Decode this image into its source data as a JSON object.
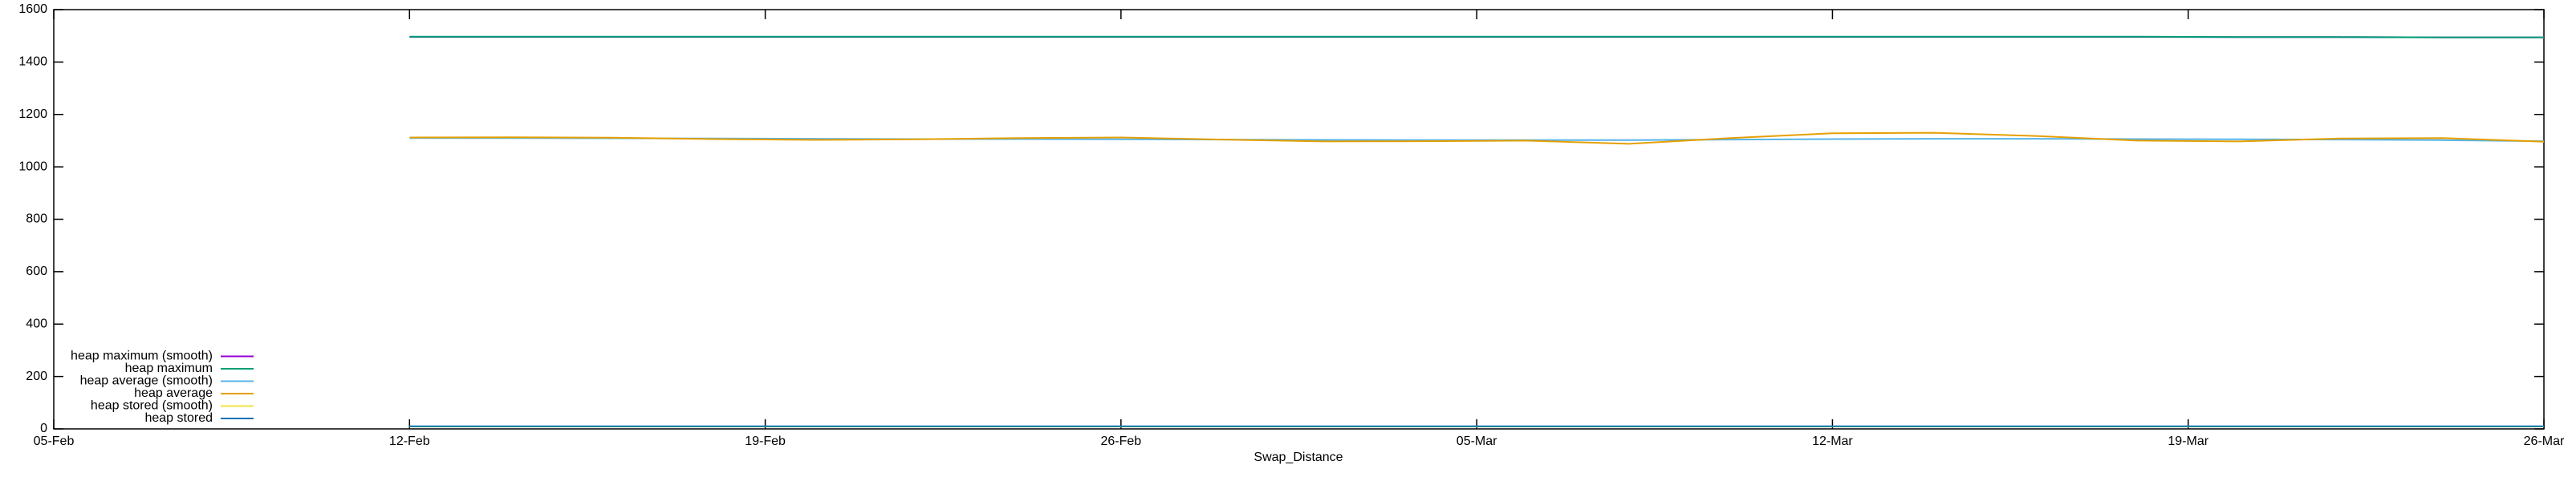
{
  "chart_data": {
    "type": "line",
    "x_label": "Swap_Distance",
    "x": [
      "12-Feb",
      "14-Feb",
      "16-Feb",
      "18-Feb",
      "20-Feb",
      "22-Feb",
      "24-Feb",
      "26-Feb",
      "28-Feb",
      "02-Mar",
      "04-Mar",
      "06-Mar",
      "08-Mar",
      "10-Mar",
      "12-Mar",
      "14-Mar",
      "16-Mar",
      "18-Mar",
      "20-Mar",
      "22-Mar",
      "24-Mar",
      "26-Mar"
    ],
    "xlim": [
      "05-Feb",
      "26-Mar"
    ],
    "xticks": [
      "05-Feb",
      "12-Feb",
      "19-Feb",
      "26-Feb",
      "05-Mar",
      "12-Mar",
      "19-Mar",
      "26-Mar"
    ],
    "ylim": [
      0,
      1600
    ],
    "yticks": [
      0,
      200,
      400,
      600,
      800,
      1000,
      1200,
      1400,
      1600
    ],
    "grid": false,
    "legend": "bottom-left",
    "series": [
      {
        "name": "heap maximum (smooth)",
        "color": "#9400d3",
        "values": [
          1496,
          1496,
          1496,
          1496,
          1496,
          1496,
          1496,
          1496,
          1496,
          1496,
          1496,
          1496,
          1496,
          1496,
          1496,
          1496,
          1496,
          1496,
          1495,
          1495,
          1494,
          1494
        ]
      },
      {
        "name": "heap maximum",
        "color": "#009e73",
        "values": [
          1497,
          1497,
          1497,
          1497,
          1497,
          1497,
          1497,
          1497,
          1497,
          1497,
          1497,
          1497,
          1497,
          1497,
          1497,
          1497,
          1497,
          1497,
          1495,
          1495,
          1494,
          1494
        ]
      },
      {
        "name": "heap average (smooth)",
        "color": "#56b4e9",
        "values": [
          1110,
          1110,
          1109,
          1108,
          1107,
          1106,
          1106,
          1105,
          1104,
          1103,
          1102,
          1102,
          1102,
          1104,
          1106,
          1107,
          1107,
          1106,
          1105,
          1104,
          1102,
          1098
        ]
      },
      {
        "name": "heap average",
        "color": "#e69f00",
        "values": [
          1112,
          1113,
          1111,
          1106,
          1103,
          1105,
          1110,
          1112,
          1104,
          1097,
          1098,
          1100,
          1088,
          1110,
          1128,
          1130,
          1118,
          1100,
          1097,
          1108,
          1110,
          1096
        ]
      },
      {
        "name": "heap stored (smooth)",
        "color": "#f0e442",
        "values": [
          9,
          9,
          9,
          9,
          9,
          9,
          9,
          9,
          9,
          9,
          9,
          9,
          9,
          9,
          9,
          9,
          9,
          9,
          9,
          9,
          9,
          9
        ]
      },
      {
        "name": "heap stored",
        "color": "#0072b2",
        "values": [
          10,
          10,
          10,
          10,
          10,
          10,
          10,
          10,
          10,
          10,
          10,
          10,
          10,
          10,
          10,
          10,
          10,
          10,
          10,
          10,
          10,
          10
        ]
      }
    ]
  }
}
